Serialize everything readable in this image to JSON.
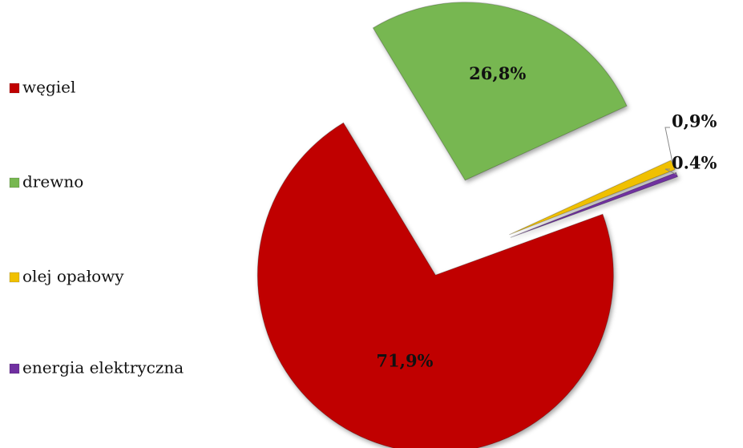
{
  "chart_data": {
    "type": "pie",
    "categories": [
      "węgiel",
      "drewno",
      "olej opałowy",
      "energia elektryczna"
    ],
    "values": [
      71.9,
      26.8,
      0.9,
      0.4
    ],
    "value_labels": [
      "71,9%",
      "26,8%",
      "0,9%",
      "0.4%"
    ],
    "colors": [
      "#c00000",
      "#77b751",
      "#f0c000",
      "#7030a0"
    ],
    "legend": "left"
  }
}
